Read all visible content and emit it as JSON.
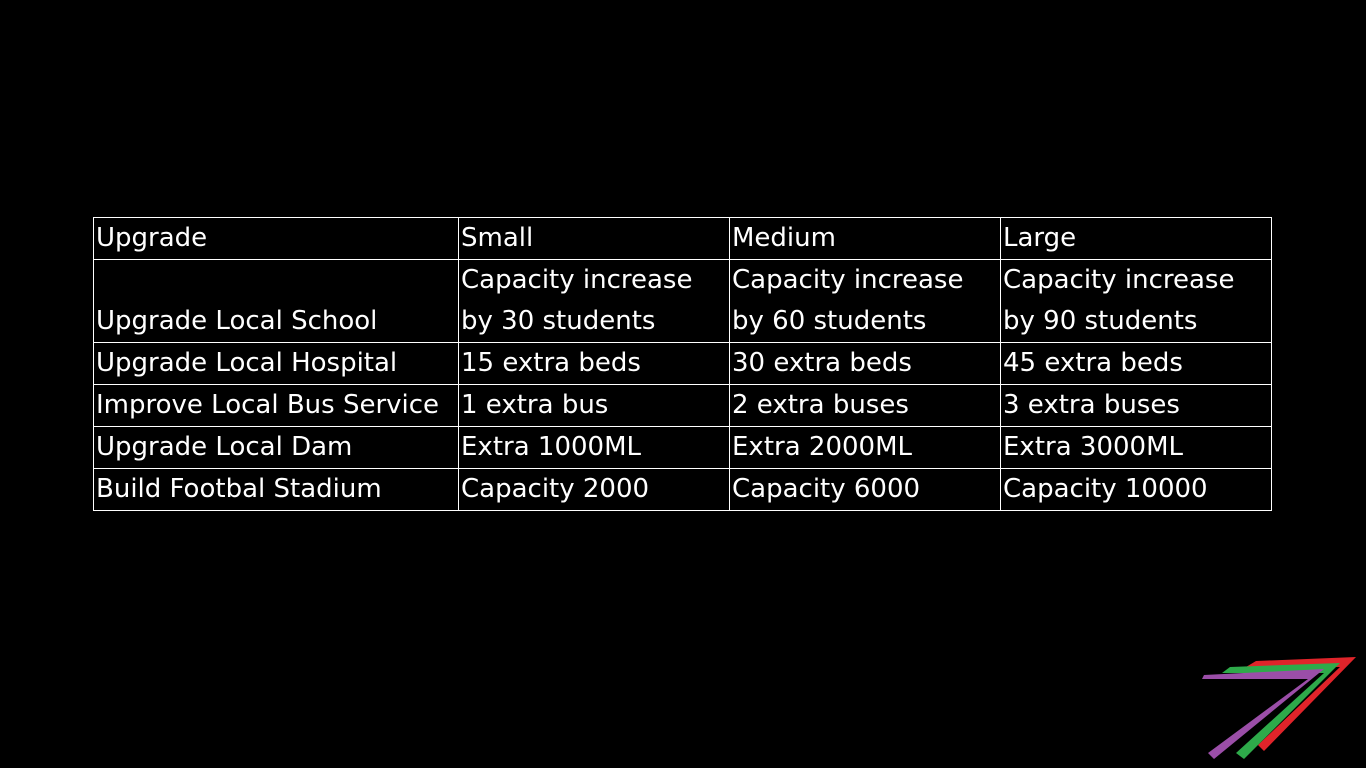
{
  "table": {
    "headers": [
      "Upgrade",
      "Small",
      "Medium",
      "Large"
    ],
    "rows": [
      [
        "Upgrade Local School",
        "Capacity increase\nby 30 students",
        "Capacity increase\nby 60 students",
        "Capacity increase\nby 90 students"
      ],
      [
        "Upgrade Local Hospital",
        "15 extra beds",
        "30 extra beds",
        "45 extra beds"
      ],
      [
        "Improve Local Bus Service",
        "1 extra bus",
        "2 extra buses",
        "3 extra buses"
      ],
      [
        "Upgrade Local Dam",
        "Extra 1000ML",
        "Extra 2000ML",
        "Extra 3000ML"
      ],
      [
        "Build Footbal Stadium",
        "Capacity 2000",
        "Capacity 6000",
        "Capacity 10000"
      ]
    ]
  },
  "logo": {
    "icon": "seven-stripes-logo",
    "colors": [
      "#e0242a",
      "#2eaa4a",
      "#9b4ea8"
    ]
  },
  "colors": {
    "background": "#000000",
    "text": "#ffffff",
    "border": "#ffffff"
  }
}
